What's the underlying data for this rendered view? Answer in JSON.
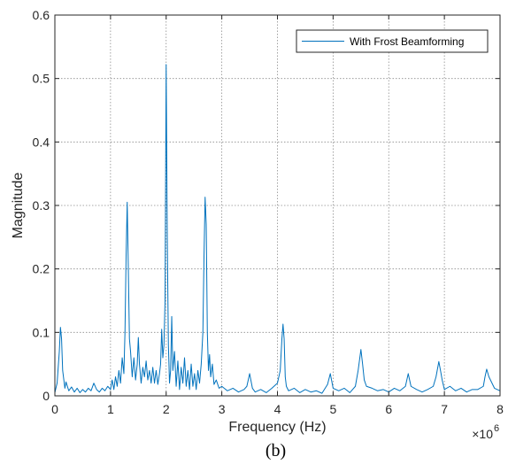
{
  "chart_data": {
    "type": "line",
    "xlabel": "Frequency (Hz)",
    "ylabel": "Magnitude",
    "x_exponent_label": "×10",
    "x_exponent_power": "6",
    "caption": "(b)",
    "xlim": [
      0,
      8
    ],
    "ylim": [
      0,
      0.6
    ],
    "xticks": [
      "0",
      "1",
      "2",
      "3",
      "4",
      "5",
      "6",
      "7",
      "8"
    ],
    "yticks": [
      "0",
      "0.1",
      "0.2",
      "0.3",
      "0.4",
      "0.5",
      "0.6"
    ],
    "grid": true,
    "legend_position": "top-right",
    "series": [
      {
        "name": "With Frost Beamforming",
        "color": "#0072BD",
        "x": [
          0,
          0.04,
          0.08,
          0.1,
          0.12,
          0.14,
          0.18,
          0.2,
          0.25,
          0.3,
          0.35,
          0.4,
          0.45,
          0.5,
          0.55,
          0.6,
          0.65,
          0.7,
          0.75,
          0.8,
          0.85,
          0.9,
          0.95,
          1.0,
          1.03,
          1.06,
          1.09,
          1.12,
          1.15,
          1.18,
          1.21,
          1.24,
          1.26,
          1.28,
          1.3,
          1.32,
          1.34,
          1.36,
          1.39,
          1.42,
          1.45,
          1.48,
          1.5,
          1.52,
          1.55,
          1.58,
          1.61,
          1.64,
          1.67,
          1.7,
          1.73,
          1.76,
          1.79,
          1.82,
          1.85,
          1.88,
          1.9,
          1.92,
          1.94,
          1.96,
          1.98,
          2.0,
          2.02,
          2.04,
          2.06,
          2.08,
          2.1,
          2.12,
          2.15,
          2.18,
          2.21,
          2.24,
          2.27,
          2.3,
          2.33,
          2.36,
          2.39,
          2.42,
          2.45,
          2.48,
          2.51,
          2.54,
          2.57,
          2.6,
          2.63,
          2.66,
          2.68,
          2.7,
          2.72,
          2.74,
          2.76,
          2.78,
          2.8,
          2.83,
          2.86,
          2.9,
          2.95,
          3.0,
          3.1,
          3.2,
          3.3,
          3.4,
          3.45,
          3.5,
          3.55,
          3.6,
          3.7,
          3.8,
          3.9,
          4.0,
          4.05,
          4.08,
          4.1,
          4.12,
          4.14,
          4.16,
          4.2,
          4.3,
          4.4,
          4.5,
          4.6,
          4.7,
          4.8,
          4.9,
          4.95,
          5.0,
          5.1,
          5.2,
          5.3,
          5.4,
          5.45,
          5.5,
          5.53,
          5.56,
          5.6,
          5.7,
          5.8,
          5.9,
          6.0,
          6.1,
          6.2,
          6.3,
          6.35,
          6.4,
          6.5,
          6.6,
          6.7,
          6.8,
          6.85,
          6.9,
          6.93,
          6.96,
          7.0,
          7.1,
          7.2,
          7.3,
          7.4,
          7.5,
          7.6,
          7.7,
          7.73,
          7.76,
          7.8,
          7.9,
          8.0
        ],
        "y": [
          0.005,
          0.02,
          0.07,
          0.108,
          0.09,
          0.04,
          0.012,
          0.022,
          0.008,
          0.014,
          0.006,
          0.012,
          0.005,
          0.01,
          0.006,
          0.012,
          0.008,
          0.02,
          0.01,
          0.006,
          0.012,
          0.008,
          0.015,
          0.01,
          0.025,
          0.01,
          0.03,
          0.015,
          0.04,
          0.02,
          0.06,
          0.035,
          0.1,
          0.22,
          0.305,
          0.2,
          0.09,
          0.07,
          0.03,
          0.06,
          0.025,
          0.05,
          0.092,
          0.05,
          0.02,
          0.045,
          0.03,
          0.055,
          0.025,
          0.04,
          0.02,
          0.045,
          0.02,
          0.04,
          0.018,
          0.035,
          0.05,
          0.105,
          0.06,
          0.08,
          0.15,
          0.522,
          0.25,
          0.08,
          0.02,
          0.04,
          0.125,
          0.04,
          0.07,
          0.015,
          0.055,
          0.01,
          0.045,
          0.02,
          0.06,
          0.015,
          0.04,
          0.01,
          0.05,
          0.015,
          0.035,
          0.01,
          0.04,
          0.02,
          0.05,
          0.1,
          0.22,
          0.313,
          0.27,
          0.1,
          0.04,
          0.065,
          0.03,
          0.05,
          0.018,
          0.025,
          0.012,
          0.015,
          0.008,
          0.012,
          0.006,
          0.01,
          0.015,
          0.035,
          0.012,
          0.006,
          0.01,
          0.005,
          0.012,
          0.02,
          0.04,
          0.09,
          0.113,
          0.09,
          0.03,
          0.015,
          0.008,
          0.012,
          0.005,
          0.01,
          0.006,
          0.008,
          0.004,
          0.018,
          0.035,
          0.012,
          0.008,
          0.012,
          0.005,
          0.015,
          0.04,
          0.073,
          0.05,
          0.025,
          0.015,
          0.012,
          0.008,
          0.01,
          0.006,
          0.012,
          0.008,
          0.015,
          0.035,
          0.015,
          0.01,
          0.006,
          0.01,
          0.015,
          0.03,
          0.054,
          0.04,
          0.025,
          0.01,
          0.015,
          0.008,
          0.012,
          0.006,
          0.01,
          0.01,
          0.015,
          0.03,
          0.042,
          0.03,
          0.012,
          0.008
        ]
      }
    ]
  }
}
